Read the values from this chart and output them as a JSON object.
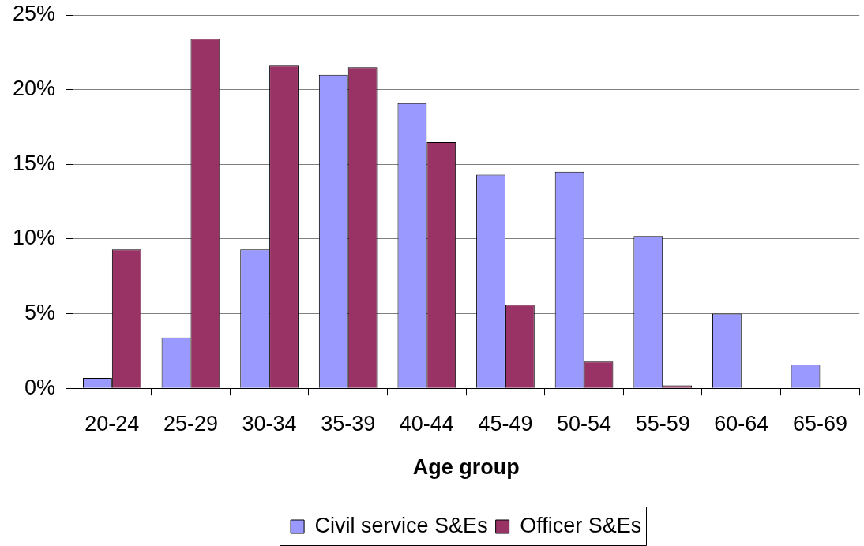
{
  "chart_data": {
    "type": "bar",
    "xlabel": "Age group",
    "categories": [
      "20-24",
      "25-29",
      "30-34",
      "35-39",
      "40-44",
      "45-49",
      "50-54",
      "55-59",
      "60-64",
      "65-69"
    ],
    "series": [
      {
        "name": "Civil service S&Es",
        "color": "#9999ff",
        "values": [
          0.7,
          3.4,
          9.3,
          21.0,
          19.1,
          14.3,
          14.5,
          10.2,
          5.0,
          1.6
        ]
      },
      {
        "name": "Officer S&Es",
        "color": "#993366",
        "values": [
          9.3,
          23.4,
          21.6,
          21.5,
          16.5,
          5.6,
          1.8,
          0.2,
          null,
          null
        ]
      }
    ],
    "ylim": [
      0,
      25
    ],
    "yticks": [
      {
        "value": 0,
        "label": "0%"
      },
      {
        "value": 5,
        "label": "5%"
      },
      {
        "value": 10,
        "label": "10%"
      },
      {
        "value": 15,
        "label": "15%"
      },
      {
        "value": 20,
        "label": "20%"
      },
      {
        "value": 25,
        "label": "25%"
      }
    ],
    "grid": "y",
    "legend": "bottom"
  }
}
